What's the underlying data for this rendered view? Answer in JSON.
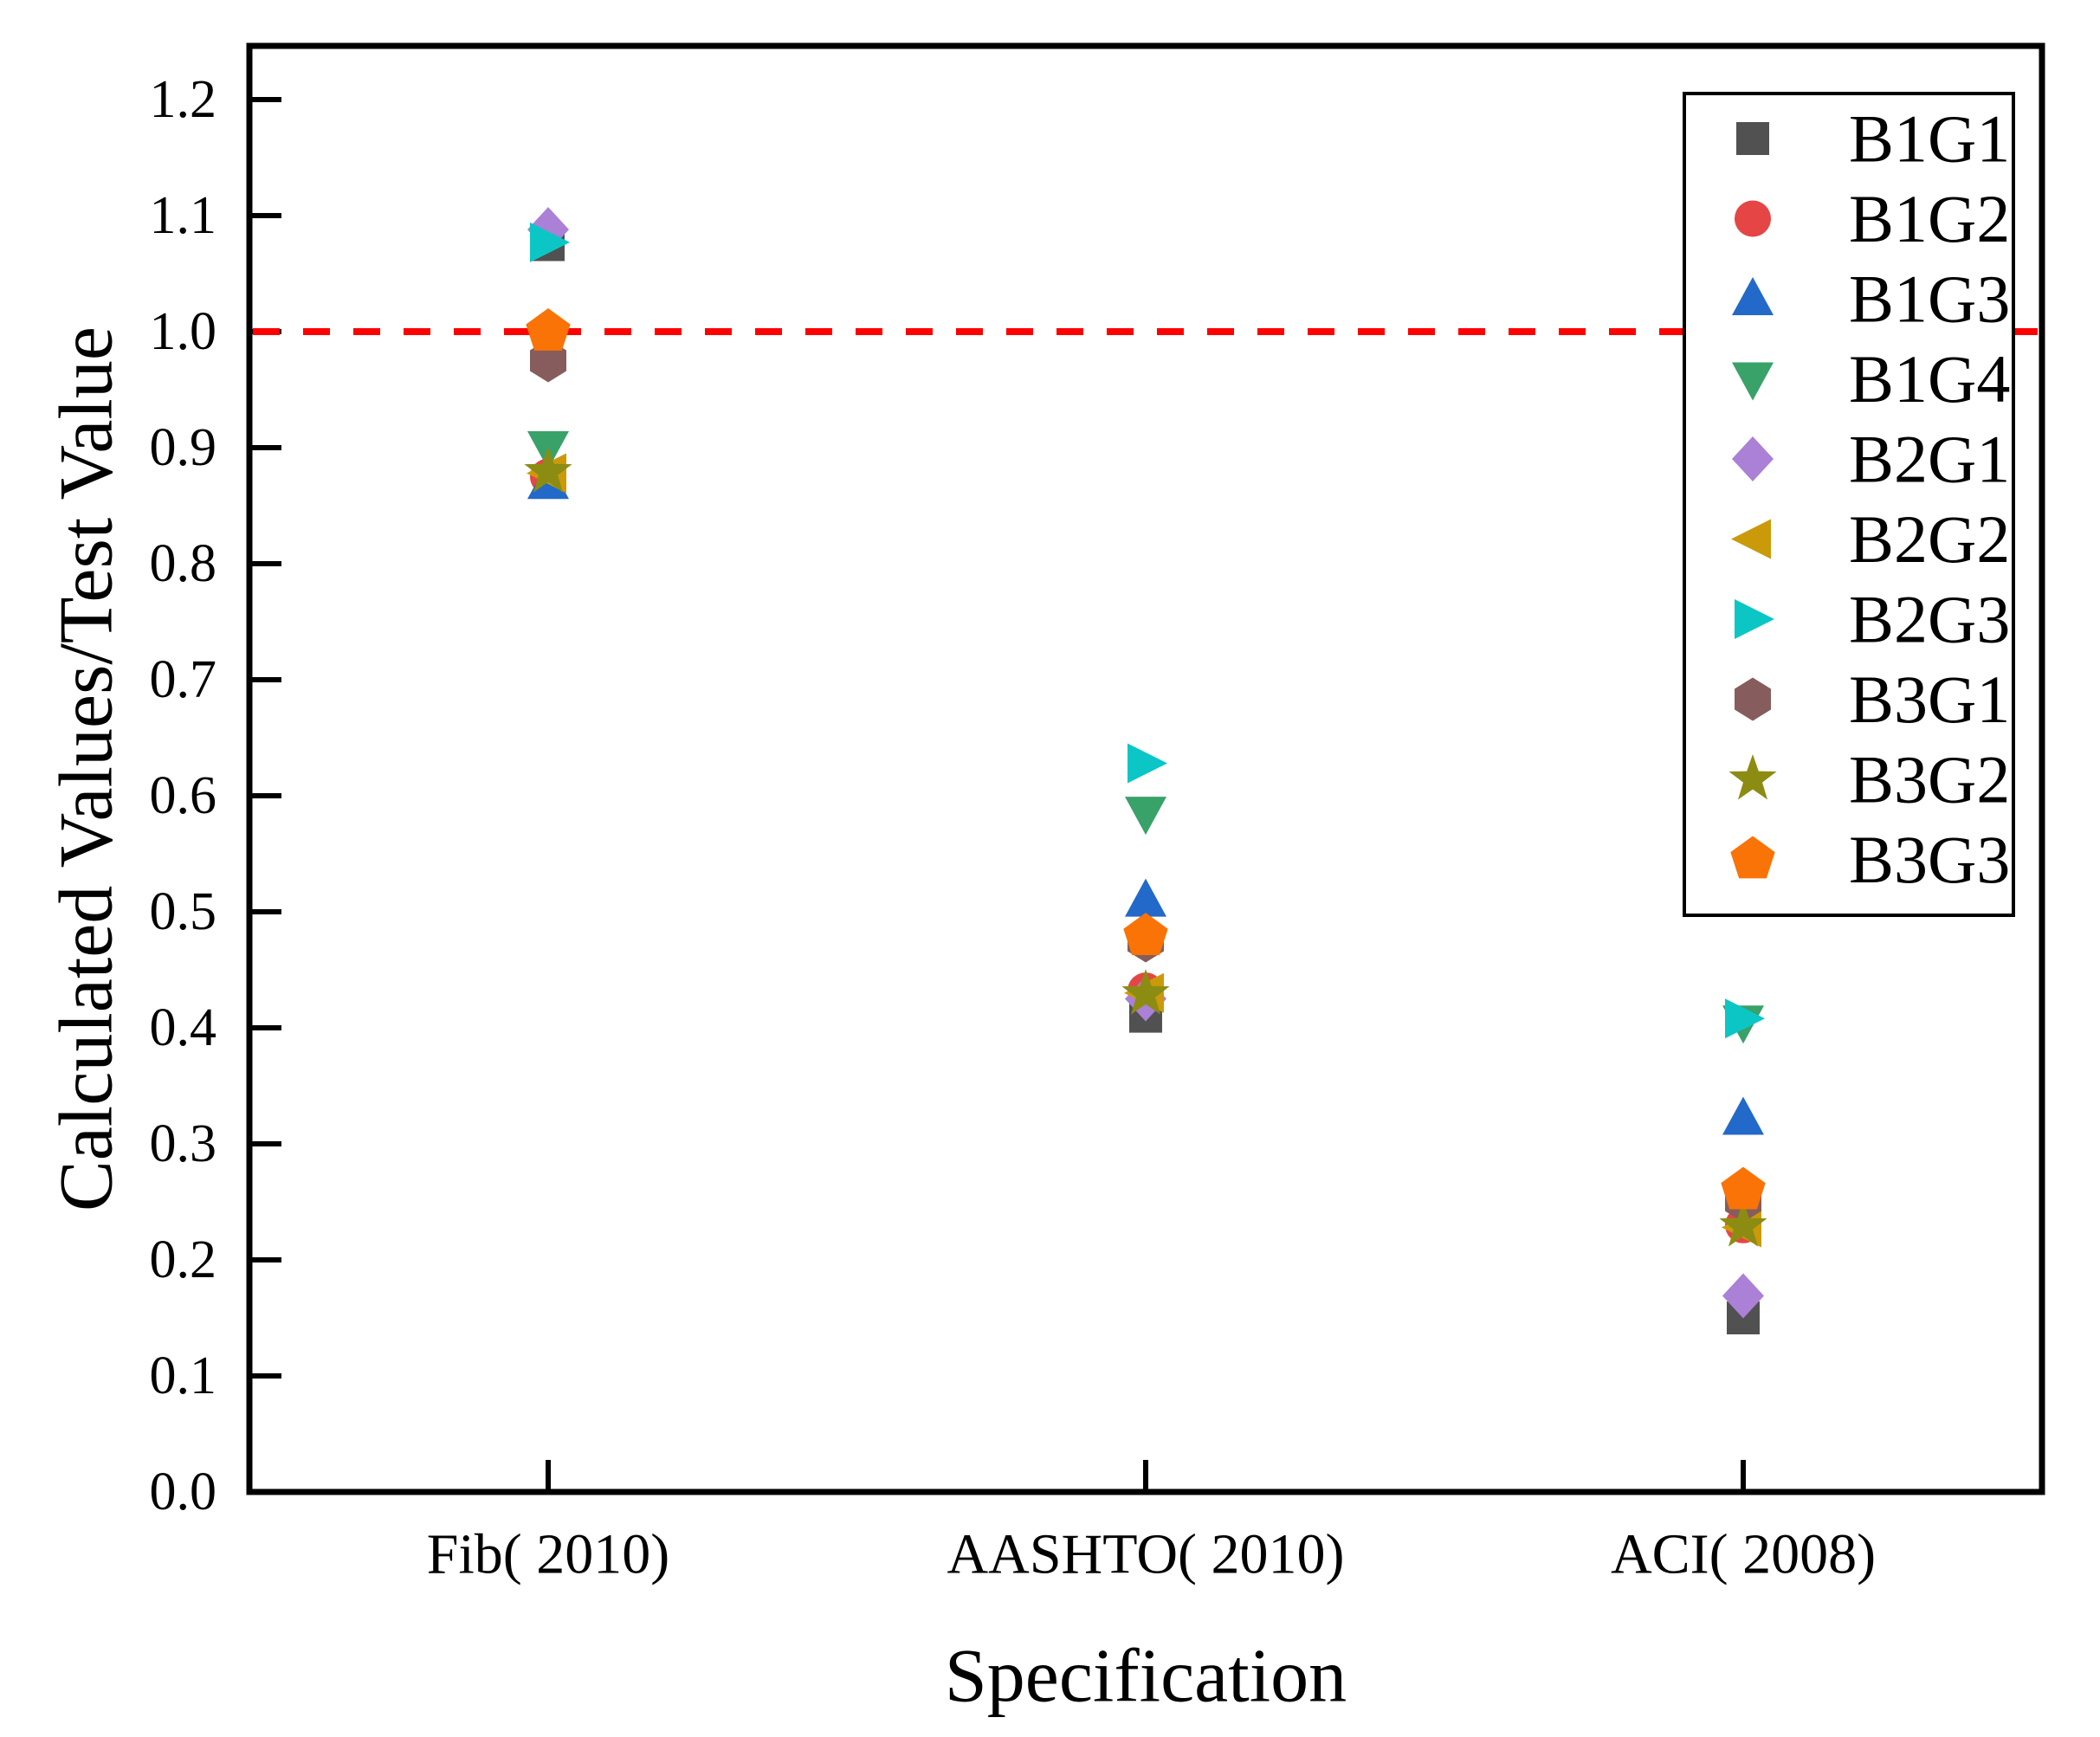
{
  "axes": {
    "y": {
      "title": "Calculated Values/Test Value",
      "ticks": [
        "0.0",
        "0.1",
        "0.2",
        "0.3",
        "0.4",
        "0.5",
        "0.6",
        "0.7",
        "0.8",
        "0.9",
        "1.0",
        "1.1",
        "1.2"
      ],
      "tick_values": [
        0.0,
        0.1,
        0.2,
        0.3,
        0.4,
        0.5,
        0.6,
        0.7,
        0.8,
        0.9,
        1.0,
        1.1,
        1.2
      ],
      "min": 0.0,
      "max": 1.25
    },
    "x": {
      "title": "Specification",
      "categories": [
        "Fib（ 2010）",
        "AASHTO（ 2010）",
        "ACI（ 2008）"
      ]
    }
  },
  "chart_data": {
    "type": "scatter",
    "title": "",
    "xlabel": "Specification",
    "ylabel": "Calculated Values/Test Value",
    "categories": [
      "Fib（ 2010）",
      "AASHTO（ 2010）",
      "ACI（ 2008）"
    ],
    "ylim": [
      0,
      1.25
    ],
    "grid": false,
    "legend_position": "top-right",
    "reference_line": {
      "y": 1.0,
      "color": "#fe0000",
      "style": "dashed"
    },
    "series": [
      {
        "name": "B1G1",
        "marker": "square",
        "color": "#515151",
        "values": [
          1.075,
          0.41,
          0.15
        ]
      },
      {
        "name": "B1G2",
        "marker": "circle",
        "color": "#e64545",
        "values": [
          0.875,
          0.432,
          0.23
        ]
      },
      {
        "name": "B1G3",
        "marker": "triangle-up",
        "color": "#2369c9",
        "values": [
          0.87,
          0.51,
          0.322
        ]
      },
      {
        "name": "B1G4",
        "marker": "triangle-down",
        "color": "#38a268",
        "values": [
          0.9,
          0.585,
          0.405
        ]
      },
      {
        "name": "B2G1",
        "marker": "diamond",
        "color": "#ab80d7",
        "values": [
          1.088,
          0.425,
          0.169
        ]
      },
      {
        "name": "B2G2",
        "marker": "triangle-left",
        "color": "#ca9a0a",
        "values": [
          0.878,
          0.43,
          0.228
        ]
      },
      {
        "name": "B2G3",
        "marker": "triangle-right",
        "color": "#0cc6c6",
        "values": [
          1.077,
          0.628,
          0.408
        ]
      },
      {
        "name": "B3G1",
        "marker": "hexagon",
        "color": "#865d5c",
        "values": [
          0.975,
          0.475,
          0.251
        ]
      },
      {
        "name": "B3G2",
        "marker": "star",
        "color": "#8c8c13",
        "values": [
          0.879,
          0.429,
          0.229
        ]
      },
      {
        "name": "B3G3",
        "marker": "pentagon",
        "color": "#f97306",
        "values": [
          1.0,
          0.479,
          0.26
        ]
      }
    ]
  },
  "colors": {
    "frame": "#000000",
    "background": "#ffffff",
    "reference_line": "#fe0000"
  }
}
